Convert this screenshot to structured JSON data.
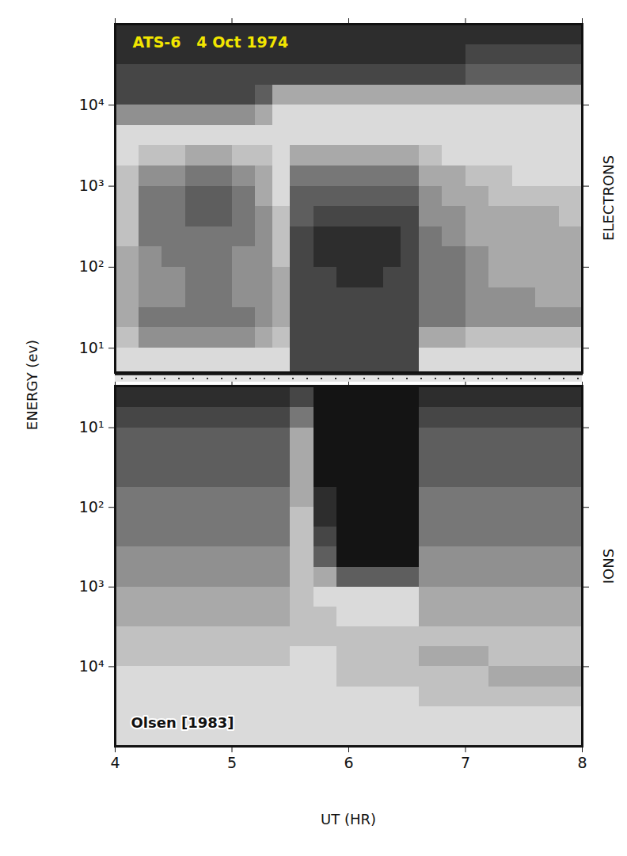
{
  "chart_data": [
    {
      "type": "heatmap",
      "title": "ATS-6   4 Oct 1974",
      "panel_label": "ELECTRONS",
      "ylabel": "ENERGY (ev)",
      "log": "y",
      "tick_labels": "y",
      "xlim": [
        4,
        8
      ],
      "xticks": [
        4,
        5,
        6,
        7,
        8
      ],
      "ylim": [
        5,
        100000
      ],
      "yticks": [
        {
          "value": 10,
          "label": "10¹"
        },
        {
          "value": 100,
          "label": "10²"
        },
        {
          "value": 1000,
          "label": "10³"
        },
        {
          "value": 10000,
          "label": "10⁴"
        }
      ],
      "zlim": [
        0,
        9
      ],
      "x_bins": [
        4.0,
        4.2,
        4.4,
        4.6,
        4.8,
        5.0,
        5.2,
        5.35,
        5.5,
        5.7,
        5.9,
        6.1,
        6.3,
        6.45,
        6.6,
        6.8,
        7.0,
        7.2,
        7.4,
        7.6,
        7.8,
        8.0
      ],
      "y_bins": [
        5,
        10,
        18,
        32,
        56,
        100,
        178,
        316,
        562,
        1000,
        1778,
        3162,
        5623,
        10000,
        17783,
        31623,
        56234,
        100000
      ],
      "cells": [
        [
          1,
          1,
          1,
          1,
          1,
          1,
          1,
          1,
          7,
          7,
          7,
          7,
          7,
          7,
          1,
          1,
          1,
          1,
          1,
          1,
          1
        ],
        [
          2,
          4,
          4,
          4,
          4,
          4,
          3,
          2,
          7,
          7,
          7,
          7,
          7,
          7,
          3,
          3,
          2,
          2,
          2,
          2,
          2
        ],
        [
          3,
          5,
          5,
          5,
          5,
          5,
          4,
          3,
          7,
          7,
          7,
          7,
          7,
          7,
          5,
          5,
          4,
          4,
          4,
          4,
          4
        ],
        [
          3,
          4,
          4,
          5,
          5,
          4,
          4,
          3,
          7,
          7,
          7,
          7,
          7,
          7,
          5,
          5,
          4,
          4,
          4,
          3,
          3
        ],
        [
          3,
          4,
          4,
          5,
          5,
          4,
          4,
          3,
          7,
          7,
          8,
          8,
          7,
          7,
          5,
          5,
          4,
          3,
          3,
          3,
          3
        ],
        [
          3,
          4,
          5,
          5,
          5,
          4,
          4,
          2,
          7,
          8,
          8,
          8,
          8,
          7,
          5,
          5,
          4,
          3,
          3,
          3,
          3
        ],
        [
          2,
          5,
          5,
          5,
          5,
          5,
          4,
          2,
          7,
          8,
          8,
          8,
          8,
          7,
          5,
          4,
          3,
          3,
          3,
          3,
          3
        ],
        [
          2,
          5,
          5,
          6,
          6,
          5,
          4,
          2,
          6,
          7,
          7,
          7,
          7,
          7,
          4,
          4,
          3,
          3,
          3,
          3,
          2
        ],
        [
          2,
          5,
          5,
          6,
          6,
          5,
          3,
          1,
          6,
          6,
          6,
          6,
          6,
          6,
          4,
          3,
          3,
          2,
          2,
          2,
          2
        ],
        [
          2,
          4,
          4,
          5,
          5,
          4,
          3,
          1,
          5,
          5,
          5,
          5,
          5,
          5,
          3,
          3,
          2,
          2,
          1,
          1,
          1
        ],
        [
          1,
          2,
          2,
          3,
          3,
          2,
          2,
          1,
          3,
          3,
          3,
          3,
          3,
          3,
          2,
          1,
          1,
          1,
          1,
          1,
          1
        ],
        [
          1,
          1,
          1,
          1,
          1,
          1,
          1,
          1,
          1,
          1,
          1,
          1,
          1,
          1,
          1,
          1,
          1,
          1,
          1,
          1,
          1
        ],
        [
          4,
          4,
          4,
          4,
          4,
          4,
          3,
          1,
          1,
          1,
          1,
          1,
          1,
          1,
          1,
          1,
          1,
          1,
          1,
          1,
          1
        ],
        [
          7,
          7,
          7,
          7,
          7,
          7,
          6,
          3,
          3,
          3,
          3,
          3,
          3,
          3,
          3,
          3,
          3,
          3,
          3,
          3,
          3
        ],
        [
          7,
          7,
          7,
          7,
          7,
          7,
          7,
          7,
          7,
          7,
          7,
          7,
          7,
          7,
          7,
          7,
          6,
          6,
          6,
          6,
          6
        ],
        [
          8,
          8,
          8,
          8,
          8,
          8,
          8,
          8,
          8,
          8,
          8,
          8,
          8,
          8,
          8,
          8,
          7,
          7,
          7,
          7,
          7
        ],
        [
          8,
          8,
          8,
          8,
          8,
          8,
          8,
          8,
          8,
          8,
          8,
          8,
          8,
          8,
          8,
          8,
          8,
          8,
          8,
          8,
          8
        ]
      ]
    },
    {
      "type": "heatmap",
      "panel_label": "IONS",
      "xlabel": "UT (HR)",
      "annotation": "Olsen [1983]",
      "log": "y",
      "xlim": [
        4,
        8
      ],
      "xticks": [
        4,
        5,
        6,
        7,
        8
      ],
      "ylim": [
        100000,
        3
      ],
      "yticks": [
        {
          "value": 10,
          "label": "10¹"
        },
        {
          "value": 100,
          "label": "10²"
        },
        {
          "value": 1000,
          "label": "10³"
        },
        {
          "value": 10000,
          "label": "10⁴"
        }
      ],
      "zlim": [
        0,
        9
      ],
      "x_bins": [
        4.0,
        4.2,
        4.4,
        4.6,
        4.8,
        5.0,
        5.2,
        5.35,
        5.5,
        5.7,
        5.9,
        6.1,
        6.3,
        6.45,
        6.6,
        6.8,
        7.0,
        7.2,
        7.4,
        7.6,
        7.8,
        8.0
      ],
      "y_bins": [
        3,
        5.6,
        10,
        18,
        32,
        56,
        100,
        178,
        316,
        562,
        1000,
        1778,
        3162,
        5623,
        10000,
        17783,
        31623,
        56234,
        100000
      ],
      "cells": [
        [
          8,
          8,
          8,
          8,
          8,
          8,
          8,
          8,
          7,
          9,
          9,
          9,
          9,
          9,
          8,
          8,
          8,
          8,
          8,
          8,
          8
        ],
        [
          7,
          7,
          7,
          7,
          7,
          7,
          7,
          7,
          5,
          9,
          9,
          9,
          9,
          9,
          7,
          7,
          7,
          7,
          7,
          7,
          7
        ],
        [
          6,
          6,
          6,
          6,
          6,
          6,
          6,
          6,
          3,
          9,
          9,
          9,
          9,
          9,
          6,
          6,
          6,
          6,
          6,
          6,
          6
        ],
        [
          6,
          6,
          6,
          6,
          6,
          6,
          6,
          6,
          3,
          9,
          9,
          9,
          9,
          9,
          6,
          6,
          6,
          6,
          6,
          6,
          6
        ],
        [
          6,
          6,
          6,
          6,
          6,
          6,
          6,
          6,
          3,
          9,
          9,
          9,
          9,
          9,
          6,
          6,
          6,
          6,
          6,
          6,
          6
        ],
        [
          5,
          5,
          5,
          5,
          5,
          5,
          5,
          5,
          3,
          8,
          9,
          9,
          9,
          9,
          5,
          5,
          5,
          5,
          5,
          5,
          5
        ],
        [
          5,
          5,
          5,
          5,
          5,
          5,
          5,
          5,
          2,
          8,
          9,
          9,
          9,
          9,
          5,
          5,
          5,
          5,
          5,
          5,
          5
        ],
        [
          5,
          5,
          5,
          5,
          5,
          5,
          5,
          5,
          2,
          7,
          9,
          9,
          9,
          9,
          5,
          5,
          5,
          5,
          5,
          5,
          5
        ],
        [
          4,
          4,
          4,
          4,
          4,
          4,
          4,
          4,
          2,
          6,
          9,
          9,
          9,
          9,
          4,
          4,
          4,
          4,
          4,
          4,
          4
        ],
        [
          4,
          4,
          4,
          4,
          4,
          4,
          4,
          4,
          2,
          3,
          6,
          6,
          6,
          6,
          4,
          4,
          4,
          4,
          4,
          4,
          4
        ],
        [
          3,
          3,
          3,
          3,
          3,
          3,
          3,
          3,
          2,
          1,
          1,
          1,
          1,
          1,
          3,
          3,
          3,
          3,
          3,
          3,
          3
        ],
        [
          3,
          3,
          3,
          3,
          3,
          3,
          3,
          3,
          2,
          2,
          1,
          1,
          1,
          1,
          3,
          3,
          3,
          3,
          3,
          3,
          3
        ],
        [
          2,
          2,
          2,
          2,
          2,
          2,
          2,
          2,
          2,
          2,
          2,
          2,
          2,
          2,
          2,
          2,
          2,
          2,
          2,
          2,
          2
        ],
        [
          2,
          2,
          2,
          2,
          2,
          2,
          2,
          2,
          1,
          1,
          2,
          2,
          2,
          2,
          3,
          3,
          3,
          2,
          2,
          2,
          2
        ],
        [
          1,
          1,
          1,
          1,
          1,
          1,
          1,
          1,
          1,
          1,
          2,
          2,
          2,
          2,
          2,
          2,
          2,
          3,
          3,
          3,
          3
        ],
        [
          1,
          1,
          1,
          1,
          1,
          1,
          1,
          1,
          1,
          1,
          1,
          1,
          1,
          1,
          2,
          2,
          2,
          2,
          2,
          2,
          2
        ],
        [
          1,
          1,
          1,
          1,
          1,
          1,
          1,
          1,
          1,
          1,
          1,
          1,
          1,
          1,
          1,
          1,
          1,
          1,
          1,
          1,
          1
        ],
        [
          1,
          1,
          1,
          1,
          1,
          1,
          1,
          1,
          1,
          1,
          1,
          1,
          1,
          1,
          1,
          1,
          1,
          1,
          1,
          1,
          1
        ]
      ]
    }
  ]
}
